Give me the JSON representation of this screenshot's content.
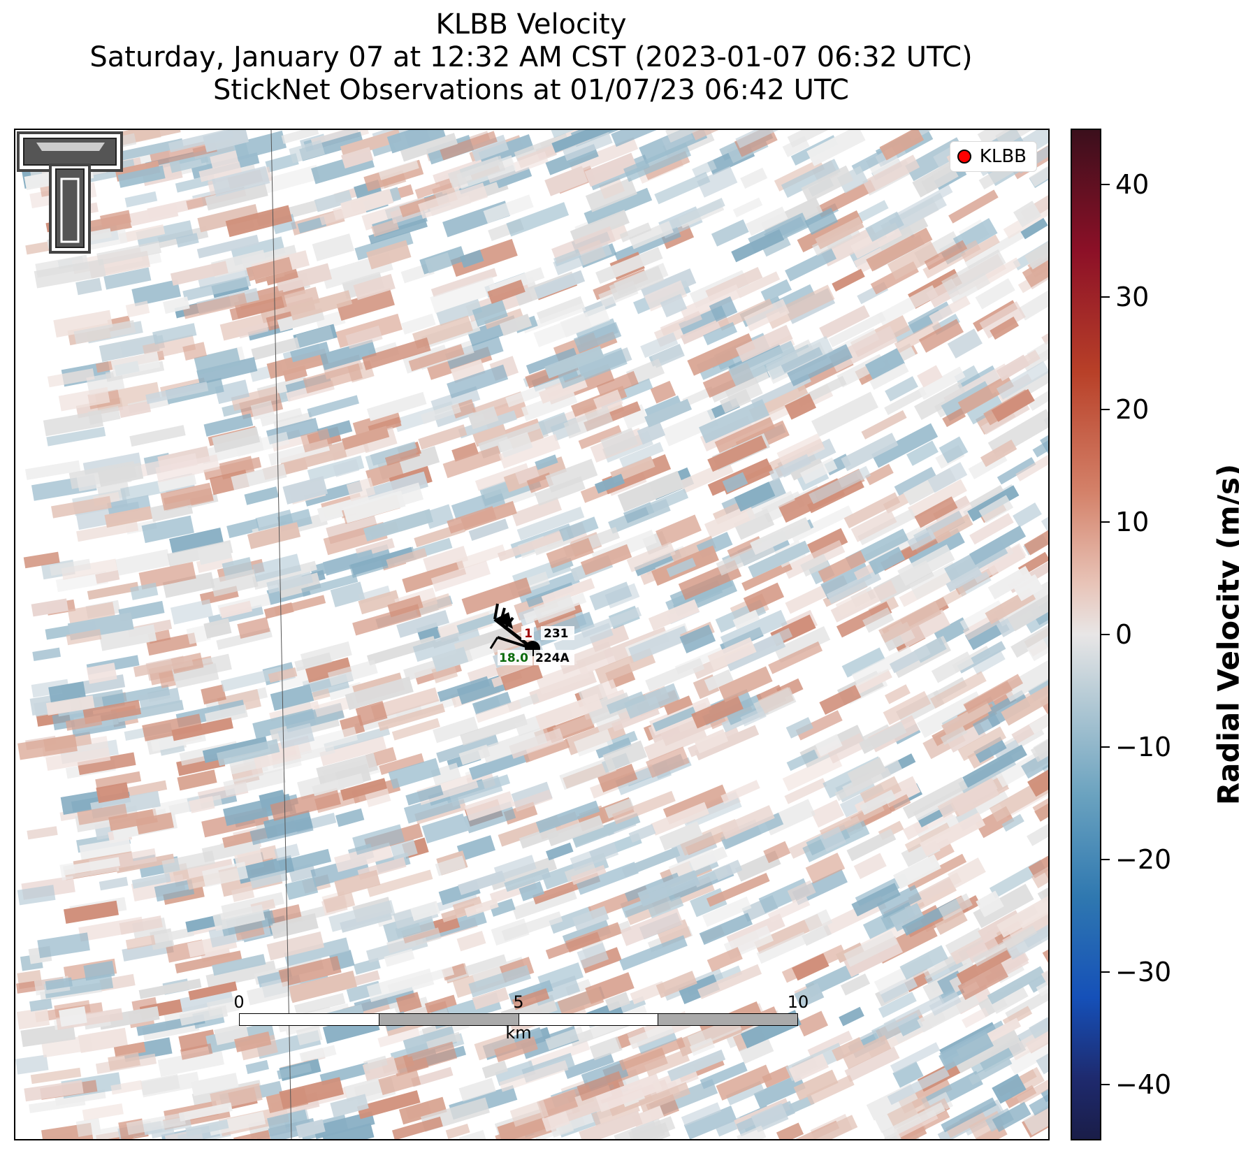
{
  "title": {
    "line1": "KLBB Velocity",
    "line2": "Saturday, January 07 at 12:32 AM CST (2023-01-07 06:32 UTC)",
    "line3": "StickNet Observations at 01/07/23 06:42 UTC"
  },
  "legend": {
    "label": "KLBB",
    "marker_color": "#ff0000"
  },
  "station": {
    "temp": "1",
    "temp_color": "#a00000",
    "id_top": "231",
    "wind": "18.0",
    "wind_color": "#0a6a0a",
    "id_bottom": "224A"
  },
  "scalebar": {
    "ticks": [
      "0",
      "5",
      "10"
    ],
    "units": "km"
  },
  "colorbar": {
    "title": "Radial Velocity (m/s)",
    "range": [
      -45,
      45
    ],
    "ticks": [
      "40",
      "30",
      "20",
      "10",
      "0",
      "−10",
      "−20",
      "−30",
      "−40"
    ]
  },
  "icons": {
    "logo": "texas-tech-double-t-logo",
    "marker": "station-barb-icon"
  }
}
